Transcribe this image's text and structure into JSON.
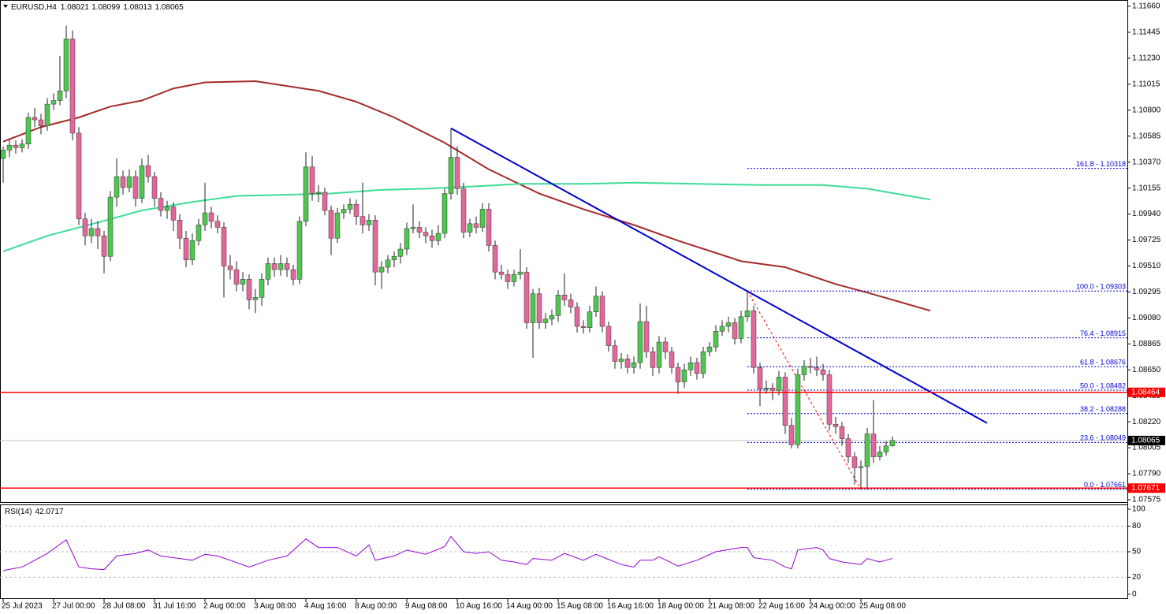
{
  "chart_data": [
    {
      "type": "candlestick",
      "symbol": "EURUSD,H4",
      "categories": [
        "25 Jul 2023",
        null,
        null,
        null,
        null,
        null,
        null,
        null,
        "27 Jul 00:00",
        null,
        null,
        null,
        null,
        null,
        null,
        null,
        "28 Jul 08:00",
        null,
        null,
        null,
        null,
        null,
        null,
        null,
        "31 Jul 16:00",
        null,
        null,
        null,
        null,
        null,
        null,
        null,
        "2 Aug 00:00",
        null,
        null,
        null,
        null,
        null,
        null,
        null,
        "3 Aug 08:00",
        null,
        null,
        null,
        null,
        null,
        null,
        null,
        "4 Aug 16:00",
        null,
        null,
        null,
        null,
        null,
        null,
        null,
        "8 Aug 00:00",
        null,
        null,
        null,
        null,
        null,
        null,
        null,
        "9 Aug 08:00",
        null,
        null,
        null,
        null,
        null,
        null,
        null,
        "10 Aug 16:00",
        null,
        null,
        null,
        null,
        null,
        null,
        null,
        "14 Aug 00:00",
        null,
        null,
        null,
        null,
        null,
        null,
        null,
        "15 Aug 08:00",
        null,
        null,
        null,
        null,
        null,
        null,
        null,
        "16 Aug 16:00",
        null,
        null,
        null,
        null,
        null,
        null,
        null,
        "18 Aug 00:00",
        null,
        null,
        null,
        null,
        null,
        null,
        null,
        "21 Aug 08:00",
        null,
        null,
        null,
        null,
        null,
        null,
        null,
        "22 Aug 16:00",
        null,
        null,
        null,
        null,
        null,
        null,
        null,
        "24 Aug 00:00",
        null,
        null,
        null,
        null,
        null,
        null,
        null,
        "25 Aug 08:00",
        null,
        null,
        null,
        null,
        null
      ],
      "open": [
        1.104,
        1.1047,
        1.1051,
        1.1049,
        1.1052,
        1.1074,
        1.1072,
        1.1067,
        1.1085,
        1.1088,
        1.1096,
        1.1139,
        1.1061,
        1.099,
        1.0976,
        1.0982,
        1.0976,
        1.0959,
        1.1008,
        1.1025,
        1.1016,
        1.1025,
        1.1007,
        1.1034,
        1.1025,
        1.1007,
        1.0997,
        1.1,
        1.0989,
        1.0974,
        1.0956,
        1.0972,
        1.0985,
        1.0995,
        1.0988,
        1.0983,
        1.0951,
        1.0948,
        1.0936,
        1.094,
        1.0923,
        1.0925,
        1.094,
        1.0953,
        1.0948,
        1.0953,
        1.0948,
        1.094,
        1.0988,
        1.1033,
        1.1011,
        1.1012,
        1.0997,
        1.0974,
        1.0995,
        1.0998,
        1.1002,
        1.0992,
        1.0985,
        1.0989,
        1.0946,
        1.095,
        1.0956,
        1.0959,
        1.0965,
        1.0982,
        1.0983,
        1.0979,
        1.0976,
        1.0972,
        1.0978,
        1.1011,
        1.1041,
        1.1015,
        1.0979,
        1.0986,
        1.0983,
        1.0998,
        1.0968,
        1.0946,
        1.0944,
        1.0938,
        1.0944,
        1.0946,
        1.0904,
        1.0928,
        1.0904,
        1.0907,
        1.091,
        1.0927,
        1.0923,
        1.0917,
        1.0901,
        1.09,
        1.0913,
        1.0926,
        1.0901,
        1.0885,
        1.0872,
        1.0874,
        1.0867,
        1.0871,
        1.0905,
        1.088,
        1.0867,
        1.0888,
        1.088,
        1.0867,
        1.0855,
        1.0865,
        1.0871,
        1.0862,
        1.088,
        1.0884,
        1.0897,
        1.0901,
        1.0904,
        1.0891,
        1.0909,
        1.0914,
        1.0867,
        1.0849,
        1.085,
        1.0848,
        1.0859,
        1.0819,
        1.0803,
        1.0861,
        1.0868,
        1.0867,
        1.0865,
        1.0861,
        1.082,
        1.0818,
        1.0808,
        1.0793,
        1.0784,
        1.0785,
        1.0812,
        1.0793,
        1.0797,
        1.08021
      ],
      "high": [
        1.105,
        1.1056,
        1.1055,
        1.1056,
        1.1078,
        1.1082,
        1.1077,
        1.109,
        1.1094,
        1.1125,
        1.115,
        1.1146,
        1.1066,
        1.0995,
        1.099,
        1.0988,
        1.098,
        1.1013,
        1.104,
        1.103,
        1.1031,
        1.103,
        1.104,
        1.1043,
        1.1029,
        1.1012,
        1.1005,
        1.1004,
        1.0994,
        1.098,
        1.0978,
        1.099,
        1.102,
        1.1,
        1.0993,
        1.0987,
        1.096,
        1.0955,
        1.0946,
        1.0944,
        1.0932,
        1.0945,
        1.0958,
        1.0958,
        1.096,
        1.0958,
        1.0952,
        1.0992,
        1.1045,
        1.1042,
        1.1018,
        1.1016,
        1.1001,
        1.0999,
        1.1002,
        1.1007,
        1.1006,
        1.102,
        1.0994,
        1.0993,
        1.0955,
        1.096,
        1.0963,
        1.097,
        1.0987,
        1.1002,
        1.0988,
        1.0983,
        1.0981,
        1.0985,
        1.1015,
        1.1065,
        1.105,
        1.102,
        1.099,
        1.0992,
        1.1003,
        1.1003,
        1.0972,
        1.0952,
        1.0948,
        1.0948,
        1.0965,
        1.095,
        1.0932,
        1.0933,
        1.0912,
        1.0915,
        1.0931,
        1.0945,
        1.0928,
        1.0921,
        1.0906,
        1.0918,
        1.0934,
        1.093,
        1.0905,
        1.089,
        1.0879,
        1.0878,
        1.0876,
        1.092,
        1.0918,
        1.0884,
        1.0893,
        1.0892,
        1.0884,
        1.0871,
        1.087,
        1.0876,
        1.0875,
        1.0884,
        1.0888,
        1.0902,
        1.0906,
        1.0909,
        1.0908,
        1.0914,
        1.093,
        1.0918,
        1.0871,
        1.0856,
        1.0854,
        1.0864,
        1.0863,
        1.0825,
        1.0866,
        1.0873,
        1.0875,
        1.0876,
        1.087,
        1.0865,
        1.0826,
        1.0822,
        1.0812,
        1.0797,
        1.079,
        1.0817,
        1.084,
        1.0802,
        1.0806,
        1.08099
      ],
      "low": [
        1.102,
        1.1041,
        1.1044,
        1.1045,
        1.1048,
        1.1066,
        1.106,
        1.1063,
        1.108,
        1.1084,
        1.109,
        1.1055,
        1.0985,
        1.0968,
        1.097,
        1.0965,
        1.0945,
        1.0955,
        1.1,
        1.101,
        1.1012,
        1.1,
        1.1003,
        1.102,
        1.1,
        1.0992,
        1.099,
        1.098,
        1.0965,
        1.095,
        1.0952,
        1.0968,
        1.098,
        1.0982,
        1.0978,
        1.0925,
        1.094,
        1.093,
        1.093,
        1.0915,
        1.0912,
        1.0918,
        1.0935,
        1.0942,
        1.0943,
        1.0942,
        1.0935,
        1.0936,
        1.0984,
        1.1005,
        1.1004,
        1.0993,
        1.096,
        1.097,
        1.099,
        1.0994,
        1.0985,
        1.0978,
        1.098,
        1.0935,
        1.0932,
        1.0945,
        1.095,
        1.0953,
        1.096,
        1.0978,
        1.0974,
        1.097,
        1.0966,
        1.0968,
        1.0974,
        1.1006,
        1.101,
        1.0974,
        1.0975,
        1.0978,
        1.0979,
        1.0963,
        1.094,
        1.094,
        1.0932,
        1.0934,
        1.094,
        1.0899,
        1.0875,
        1.0899,
        1.0899,
        1.0902,
        1.0905,
        1.0918,
        1.0912,
        1.0896,
        1.0895,
        1.0896,
        1.0909,
        1.0896,
        1.088,
        1.0866,
        1.0866,
        1.0862,
        1.0862,
        1.0866,
        1.0875,
        1.086,
        1.0862,
        1.0874,
        1.0862,
        1.0845,
        1.085,
        1.086,
        1.0857,
        1.0858,
        1.0876,
        1.088,
        1.0893,
        1.0896,
        1.0886,
        1.0887,
        1.0905,
        1.0862,
        1.0835,
        1.0845,
        1.084,
        1.0844,
        1.0812,
        1.08,
        1.08,
        1.0856,
        1.0862,
        1.086,
        1.0856,
        1.0815,
        1.0812,
        1.0802,
        1.0788,
        1.077,
        1.0766,
        1.0766,
        1.0788,
        1.079,
        1.0794,
        1.08013
      ],
      "close": [
        1.1047,
        1.1051,
        1.1049,
        1.1052,
        1.1074,
        1.1072,
        1.1067,
        1.1085,
        1.1088,
        1.1096,
        1.1139,
        1.1061,
        1.099,
        1.0976,
        1.0982,
        1.0976,
        1.0959,
        1.1008,
        1.1025,
        1.1016,
        1.1025,
        1.1007,
        1.1034,
        1.1025,
        1.1007,
        1.0997,
        1.1,
        1.0989,
        1.0974,
        1.0956,
        1.0972,
        1.0985,
        1.0995,
        1.0988,
        1.0983,
        1.0951,
        1.0948,
        1.0936,
        1.094,
        1.0923,
        1.0925,
        1.094,
        1.0953,
        1.0948,
        1.0953,
        1.0948,
        1.094,
        1.0988,
        1.1033,
        1.1011,
        1.1012,
        1.0997,
        1.0974,
        1.0995,
        1.0998,
        1.1002,
        1.0992,
        1.0985,
        1.0989,
        1.0946,
        1.095,
        1.0956,
        1.0959,
        1.0965,
        1.0982,
        1.0983,
        1.0979,
        1.0976,
        1.0972,
        1.0978,
        1.1011,
        1.1041,
        1.1015,
        1.0979,
        1.0986,
        1.0983,
        1.0998,
        1.0968,
        1.0946,
        1.0944,
        1.0938,
        1.0944,
        1.0946,
        1.0904,
        1.0928,
        1.0904,
        1.0907,
        1.091,
        1.0927,
        1.0923,
        1.0917,
        1.0901,
        1.09,
        1.0913,
        1.0926,
        1.0901,
        1.0885,
        1.0872,
        1.0874,
        1.0867,
        1.0871,
        1.0905,
        1.088,
        1.0867,
        1.0888,
        1.088,
        1.0867,
        1.0855,
        1.0865,
        1.0871,
        1.0862,
        1.088,
        1.0884,
        1.0897,
        1.0901,
        1.0904,
        1.0891,
        1.0909,
        1.0914,
        1.0867,
        1.0849,
        1.085,
        1.0848,
        1.0859,
        1.0819,
        1.0803,
        1.0861,
        1.0868,
        1.0867,
        1.0865,
        1.0861,
        1.082,
        1.0818,
        1.0808,
        1.0793,
        1.0784,
        1.0785,
        1.0812,
        1.0793,
        1.0797,
        1.08021,
        1.08065
      ],
      "bull_color": "#4fc64f",
      "bear_color": "#e4679b",
      "ylim": [
        1.07575,
        1.1166
      ],
      "yticks": [
        {
          "value": 1.1166,
          "label": "1.11660"
        },
        1.11445,
        {
          "value": 1.1123,
          "label": "1.11230"
        },
        1.11015,
        {
          "value": 1.108,
          "label": "1.10800"
        },
        1.10585,
        {
          "value": 1.1037,
          "label": "1.10370"
        },
        1.10155,
        {
          "value": 1.0994,
          "label": "1.09940"
        },
        1.09725,
        {
          "value": 1.0951,
          "label": "1.09510"
        },
        1.09295,
        {
          "value": 1.0908,
          "label": "1.09080"
        },
        1.08865,
        {
          "value": 1.0865,
          "label": "1.08650"
        },
        1.08435,
        {
          "value": 1.0822,
          "label": "1.08220"
        },
        1.08005,
        {
          "value": 1.0779,
          "label": "1.07790"
        },
        1.07575
      ],
      "overlays": [
        {
          "type": "line",
          "color": "#a52a2a",
          "x": [
            0,
            6,
            12,
            17,
            22,
            27,
            32,
            40,
            50,
            56,
            62,
            70,
            77,
            85,
            92,
            100,
            107,
            117,
            124,
            132,
            137,
            147
          ],
          "values": [
            1.1054,
            1.1066,
            1.1074,
            1.1083,
            1.1088,
            1.1098,
            1.1103,
            1.1104,
            1.1096,
            1.1087,
            1.1074,
            1.1053,
            1.1031,
            1.1011,
            1.0998,
            1.0985,
            1.0972,
            1.0955,
            1.095,
            1.0936,
            1.0929,
            1.0914
          ]
        },
        {
          "type": "line",
          "color": "#3ddc97",
          "x": [
            0,
            7,
            15,
            22,
            30,
            37,
            45,
            52,
            60,
            67,
            75,
            82,
            92,
            100,
            110,
            120,
            130,
            137,
            147
          ],
          "values": [
            1.0963,
            1.0976,
            1.0987,
            1.0997,
            1.1004,
            1.1009,
            1.101,
            1.1011,
            1.1014,
            1.1015,
            1.1017,
            1.1019,
            1.1019,
            1.102,
            1.1019,
            1.1018,
            1.1018,
            1.1015,
            1.1006
          ]
        },
        {
          "type": "line",
          "color": "#0000cd",
          "x": [
            71,
            156
          ],
          "values": [
            1.1065,
            1.0821
          ]
        }
      ],
      "levels": [
        {
          "value": 1.08464,
          "color": "#ff0000"
        },
        {
          "value": 1.07671,
          "color": "#ff0000"
        }
      ],
      "fib": {
        "color": "#0000cd",
        "line_color": "#ff0000",
        "x": [
          118,
          136
        ],
        "levels": [
          {
            "value": 1.10318,
            "label": "161.8 - 1.10318"
          },
          {
            "value": 1.09303,
            "label": "100.0 - 1.09303"
          },
          {
            "value": 1.08915,
            "label": "76.4 - 1.08915"
          },
          {
            "value": 1.08676,
            "label": "61.8 - 1.08676"
          },
          {
            "value": 1.08482,
            "label": "50.0 - 1.08482"
          },
          {
            "value": 1.08288,
            "label": "38.2 - 1.08288"
          },
          {
            "value": 1.08049,
            "label": "23.6 - 1.08049"
          },
          {
            "value": 1.07661,
            "label": "0.0 - 1.07661"
          }
        ]
      }
    },
    {
      "type": "line",
      "label": "RSI(14)",
      "color": "#9400d3",
      "x": [
        0,
        3,
        5,
        7,
        10,
        12,
        14,
        16,
        18,
        21,
        23,
        25,
        28,
        30,
        32,
        34,
        36,
        39,
        42,
        45,
        48,
        50,
        53,
        56,
        58,
        59,
        62,
        64,
        67,
        70,
        71,
        73,
        75,
        77,
        79,
        81,
        83,
        84,
        87,
        89,
        92,
        94,
        98,
        100,
        101,
        103,
        104,
        106,
        107,
        110,
        113,
        117,
        118,
        119,
        122,
        124,
        125,
        126,
        129,
        130,
        131,
        133,
        135,
        136,
        137,
        139,
        141
      ],
      "values": [
        28,
        32,
        40,
        48,
        64,
        32,
        30,
        29,
        45,
        48,
        52,
        45,
        42,
        40,
        47,
        45,
        40,
        32,
        40,
        45,
        65,
        55,
        55,
        45,
        58,
        40,
        45,
        52,
        47,
        56,
        68,
        50,
        48,
        50,
        40,
        38,
        35,
        42,
        40,
        48,
        40,
        47,
        35,
        32,
        40,
        40,
        44,
        37,
        33,
        40,
        50,
        55,
        55,
        43,
        40,
        32,
        30,
        52,
        55,
        52,
        42,
        38,
        36,
        35,
        42,
        38,
        42.0717
      ],
      "ylim": [
        0,
        100
      ],
      "yticks": [
        100,
        80,
        50,
        20,
        0
      ]
    }
  ]
}
